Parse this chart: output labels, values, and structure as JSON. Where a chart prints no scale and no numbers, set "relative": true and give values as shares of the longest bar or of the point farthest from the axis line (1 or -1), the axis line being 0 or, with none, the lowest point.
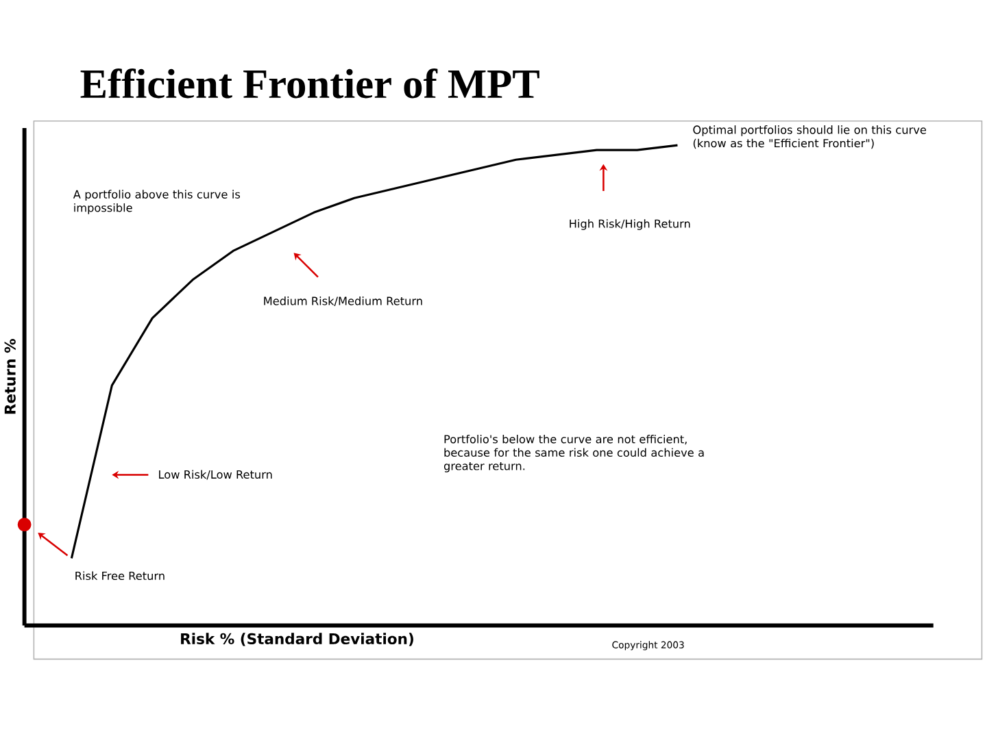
{
  "chart_data": {
    "type": "line",
    "title": "Efficient Frontier of MPT",
    "xlabel": "Risk % (Standard Deviation)",
    "ylabel": "Return %",
    "relative": true,
    "marker": "none",
    "categories": [
      null,
      null,
      null,
      null,
      null,
      null,
      null,
      null,
      null,
      null,
      null,
      null,
      null,
      null,
      null,
      null
    ],
    "series": [
      {
        "color": "#000000",
        "values": [
          0.14,
          0.5,
          0.64,
          0.72,
          0.78,
          0.82,
          0.86,
          0.89,
          0.91,
          0.93,
          0.95,
          0.97,
          0.98,
          0.99,
          0.99,
          1
        ]
      }
    ],
    "annotations": [
      "A portfolio above this curve is impossible",
      "Optimal portfolios should lie on this curve (know as the \"Efficient Frontier\")",
      "High Risk/High Return",
      "Medium Risk/Medium Return",
      "Portfolio's below the curve are not efficient, because for the same risk one could achieve a greater return.",
      "Low Risk/Low Return",
      "Risk Free Return",
      "Copyright 2003"
    ]
  }
}
